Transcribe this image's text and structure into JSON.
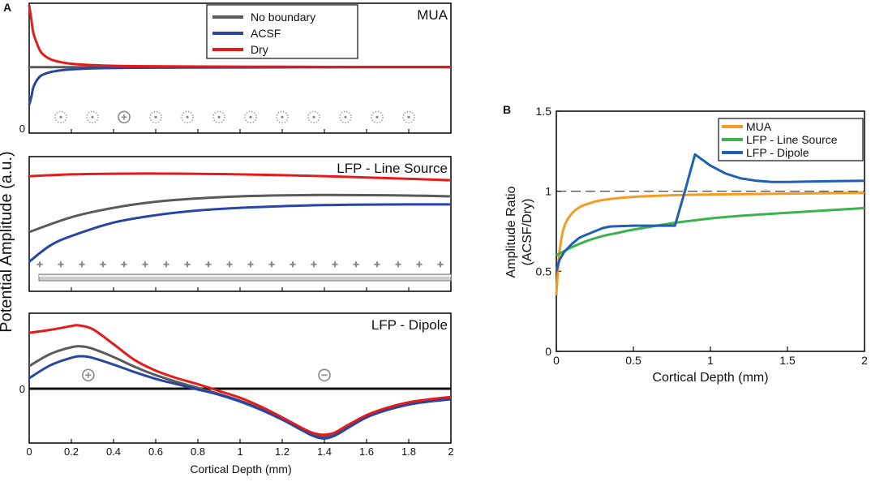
{
  "panel_a": {
    "label": "A",
    "ylabel": "Potential Amplitude (a.u.)",
    "xlabel": "Cortical Depth (mm)"
  },
  "panel_b": {
    "label": "B"
  },
  "colors": {
    "no_boundary": "#5a5a5a",
    "acsf": "#2845a6",
    "dry": "#e31b1b",
    "mua": "#f39b22",
    "lfp_line": "#3bb34a",
    "lfp_dipole": "#1f5fb4",
    "axis": "#111111",
    "marker": "#8a8a8a"
  },
  "chart_data": [
    {
      "id": "mua",
      "type": "line",
      "title": "MUA",
      "xlabel": "",
      "ylabel": "",
      "xlim": [
        0,
        2
      ],
      "ylim": [
        -0.2,
        0.45
      ],
      "yticks": [
        0
      ],
      "ytick_labels": [
        "0"
      ],
      "legend": {
        "placement": "top-center",
        "entries": [
          "No boundary",
          "ACSF",
          "Dry"
        ]
      },
      "markers": {
        "x": [
          0.15,
          0.3,
          0.45,
          0.6,
          0.75,
          0.9,
          1.05,
          1.2,
          1.35,
          1.5,
          1.65,
          1.8
        ],
        "y": -0.12,
        "filled_index": 2
      },
      "series": [
        {
          "name": "No boundary",
          "color_key": "no_boundary",
          "x": [
            0,
            2
          ],
          "y": [
            0.13,
            0.13
          ]
        },
        {
          "name": "ACSF",
          "color_key": "acsf",
          "x": [
            0,
            0.01,
            0.02,
            0.04,
            0.06,
            0.1,
            0.15,
            0.2,
            0.3,
            0.5,
            0.8,
            1.2,
            1.6,
            2.0
          ],
          "y": [
            -0.06,
            -0.02,
            0.03,
            0.07,
            0.09,
            0.105,
            0.114,
            0.119,
            0.124,
            0.127,
            0.128,
            0.129,
            0.13,
            0.13
          ]
        },
        {
          "name": "Dry",
          "color_key": "dry",
          "x": [
            0,
            0.01,
            0.02,
            0.04,
            0.06,
            0.1,
            0.15,
            0.2,
            0.3,
            0.5,
            0.8,
            1.2,
            1.6,
            2.0
          ],
          "y": [
            0.44,
            0.37,
            0.3,
            0.24,
            0.2,
            0.17,
            0.155,
            0.147,
            0.14,
            0.135,
            0.133,
            0.132,
            0.131,
            0.131
          ]
        }
      ]
    },
    {
      "id": "line_source",
      "type": "line",
      "title": "LFP - Line Source",
      "xlim": [
        0,
        2
      ],
      "ylim": [
        0,
        1
      ],
      "markers": {
        "x": [
          0.05,
          0.15,
          0.25,
          0.35,
          0.45,
          0.55,
          0.65,
          0.75,
          0.85,
          0.95,
          1.05,
          1.15,
          1.25,
          1.35,
          1.45,
          1.55,
          1.65,
          1.75,
          1.85,
          1.95
        ],
        "y": 0.2
      },
      "series": [
        {
          "name": "No boundary",
          "color_key": "no_boundary",
          "x": [
            0,
            0.2,
            0.4,
            0.6,
            0.8,
            1.0,
            1.2,
            1.4,
            1.6,
            1.8,
            2.0
          ],
          "y": [
            0.44,
            0.55,
            0.62,
            0.665,
            0.69,
            0.705,
            0.712,
            0.715,
            0.714,
            0.711,
            0.705
          ]
        },
        {
          "name": "ACSF",
          "color_key": "acsf",
          "x": [
            0,
            0.1,
            0.2,
            0.4,
            0.6,
            0.8,
            1.0,
            1.2,
            1.4,
            1.6,
            1.8,
            2.0
          ],
          "y": [
            0.22,
            0.34,
            0.41,
            0.51,
            0.565,
            0.6,
            0.62,
            0.632,
            0.64,
            0.644,
            0.645,
            0.645
          ]
        },
        {
          "name": "Dry",
          "color_key": "dry",
          "x": [
            0,
            0.2,
            0.4,
            0.6,
            0.8,
            1.0,
            1.2,
            1.4,
            1.6,
            1.8,
            2.0
          ],
          "y": [
            0.855,
            0.868,
            0.873,
            0.874,
            0.872,
            0.868,
            0.862,
            0.855,
            0.845,
            0.835,
            0.825
          ]
        }
      ]
    },
    {
      "id": "dipole",
      "type": "line",
      "title": "LFP - Dipole",
      "xlabel": "Cortical Depth (mm)",
      "xlim": [
        0,
        2
      ],
      "ylim": [
        -0.72,
        1.0
      ],
      "xticks": [
        0,
        0.2,
        0.4,
        0.6,
        0.8,
        1,
        1.2,
        1.4,
        1.6,
        1.8,
        2
      ],
      "xtick_labels": [
        "0",
        "0.2",
        "0.4",
        "0.6",
        "0.8",
        "1",
        "1.2",
        "1.4",
        "1.6",
        "1.8",
        "2"
      ],
      "yticks": [
        0
      ],
      "ytick_labels": [
        "0"
      ],
      "markers": [
        {
          "x": 0.28,
          "y": 0.18,
          "sign": "+"
        },
        {
          "x": 1.4,
          "y": 0.18,
          "sign": "-"
        }
      ],
      "series": [
        {
          "name": "No boundary",
          "color_key": "no_boundary",
          "x": [
            0,
            0.1,
            0.2,
            0.25,
            0.3,
            0.4,
            0.5,
            0.6,
            0.7,
            0.8,
            0.9,
            1.0,
            1.1,
            1.2,
            1.3,
            1.35,
            1.4,
            1.45,
            1.5,
            1.6,
            1.7,
            1.8,
            1.9,
            2.0
          ],
          "y": [
            0.3,
            0.46,
            0.55,
            0.56,
            0.53,
            0.42,
            0.29,
            0.18,
            0.09,
            0.01,
            -0.07,
            -0.16,
            -0.27,
            -0.4,
            -0.55,
            -0.62,
            -0.64,
            -0.6,
            -0.52,
            -0.37,
            -0.27,
            -0.2,
            -0.16,
            -0.13
          ]
        },
        {
          "name": "ACSF",
          "color_key": "acsf",
          "x": [
            0,
            0.1,
            0.2,
            0.25,
            0.3,
            0.4,
            0.5,
            0.6,
            0.7,
            0.8,
            0.9,
            1.0,
            1.1,
            1.2,
            1.3,
            1.35,
            1.4,
            1.45,
            1.5,
            1.6,
            1.7,
            1.8,
            1.9,
            2.0
          ],
          "y": [
            0.14,
            0.31,
            0.41,
            0.43,
            0.41,
            0.32,
            0.22,
            0.13,
            0.06,
            -0.01,
            -0.08,
            -0.17,
            -0.28,
            -0.41,
            -0.56,
            -0.63,
            -0.66,
            -0.62,
            -0.54,
            -0.38,
            -0.28,
            -0.21,
            -0.17,
            -0.14
          ]
        },
        {
          "name": "Dry",
          "color_key": "dry",
          "x": [
            0,
            0.1,
            0.2,
            0.23,
            0.3,
            0.4,
            0.5,
            0.6,
            0.7,
            0.8,
            0.9,
            1.0,
            1.1,
            1.2,
            1.3,
            1.35,
            1.4,
            1.45,
            1.5,
            1.6,
            1.7,
            1.8,
            1.9,
            2.0
          ],
          "y": [
            0.74,
            0.78,
            0.83,
            0.84,
            0.79,
            0.59,
            0.38,
            0.24,
            0.14,
            0.06,
            -0.03,
            -0.12,
            -0.24,
            -0.38,
            -0.53,
            -0.59,
            -0.61,
            -0.58,
            -0.5,
            -0.35,
            -0.25,
            -0.18,
            -0.14,
            -0.11
          ]
        }
      ]
    },
    {
      "id": "ratio",
      "type": "line",
      "title": "",
      "xlabel": "Cortical Depth (mm)",
      "ylabel_lines": [
        "Amplitude Ratio",
        "(ACSF/Dry)"
      ],
      "xlim": [
        0,
        2
      ],
      "ylim": [
        0,
        1.5
      ],
      "xticks": [
        0,
        0.5,
        1,
        1.5,
        2
      ],
      "xtick_labels": [
        "0",
        "0.5",
        "1",
        "1.5",
        "2"
      ],
      "yticks": [
        0,
        0.5,
        1,
        1.5
      ],
      "ytick_labels": [
        "0",
        "0.5",
        "1",
        "1.5"
      ],
      "reference_line": {
        "y": 1,
        "style": "dashed"
      },
      "legend": {
        "placement": "top-right",
        "entries": [
          "MUA",
          "LFP - Line Source",
          "LFP - Dipole"
        ]
      },
      "series": [
        {
          "name": "MUA",
          "color_key": "mua",
          "x": [
            0,
            0.01,
            0.02,
            0.04,
            0.06,
            0.1,
            0.15,
            0.2,
            0.3,
            0.5,
            0.75,
            1.0,
            1.5,
            2.0
          ],
          "y": [
            0.35,
            0.5,
            0.62,
            0.74,
            0.8,
            0.86,
            0.9,
            0.92,
            0.945,
            0.965,
            0.975,
            0.98,
            0.985,
            0.99
          ]
        },
        {
          "name": "LFP - Line Source",
          "color_key": "lfp_line",
          "x": [
            0,
            0.1,
            0.2,
            0.3,
            0.4,
            0.5,
            0.75,
            1.0,
            1.25,
            1.5,
            1.75,
            2.0
          ],
          "y": [
            0.6,
            0.65,
            0.69,
            0.72,
            0.74,
            0.76,
            0.8,
            0.83,
            0.85,
            0.865,
            0.88,
            0.895
          ]
        },
        {
          "name": "LFP - Dipole",
          "color_key": "lfp_dipole",
          "x": [
            0,
            0.02,
            0.05,
            0.1,
            0.15,
            0.2,
            0.3,
            0.35,
            0.5,
            0.6,
            0.7,
            0.77,
            0.84,
            0.9,
            1.0,
            1.1,
            1.2,
            1.3,
            1.4,
            1.5,
            1.75,
            2.0
          ],
          "y": [
            0.5,
            0.57,
            0.62,
            0.67,
            0.71,
            0.73,
            0.77,
            0.78,
            0.785,
            0.785,
            0.785,
            0.785,
            1.02,
            1.23,
            1.16,
            1.11,
            1.08,
            1.065,
            1.058,
            1.058,
            1.062,
            1.065
          ]
        }
      ]
    }
  ]
}
